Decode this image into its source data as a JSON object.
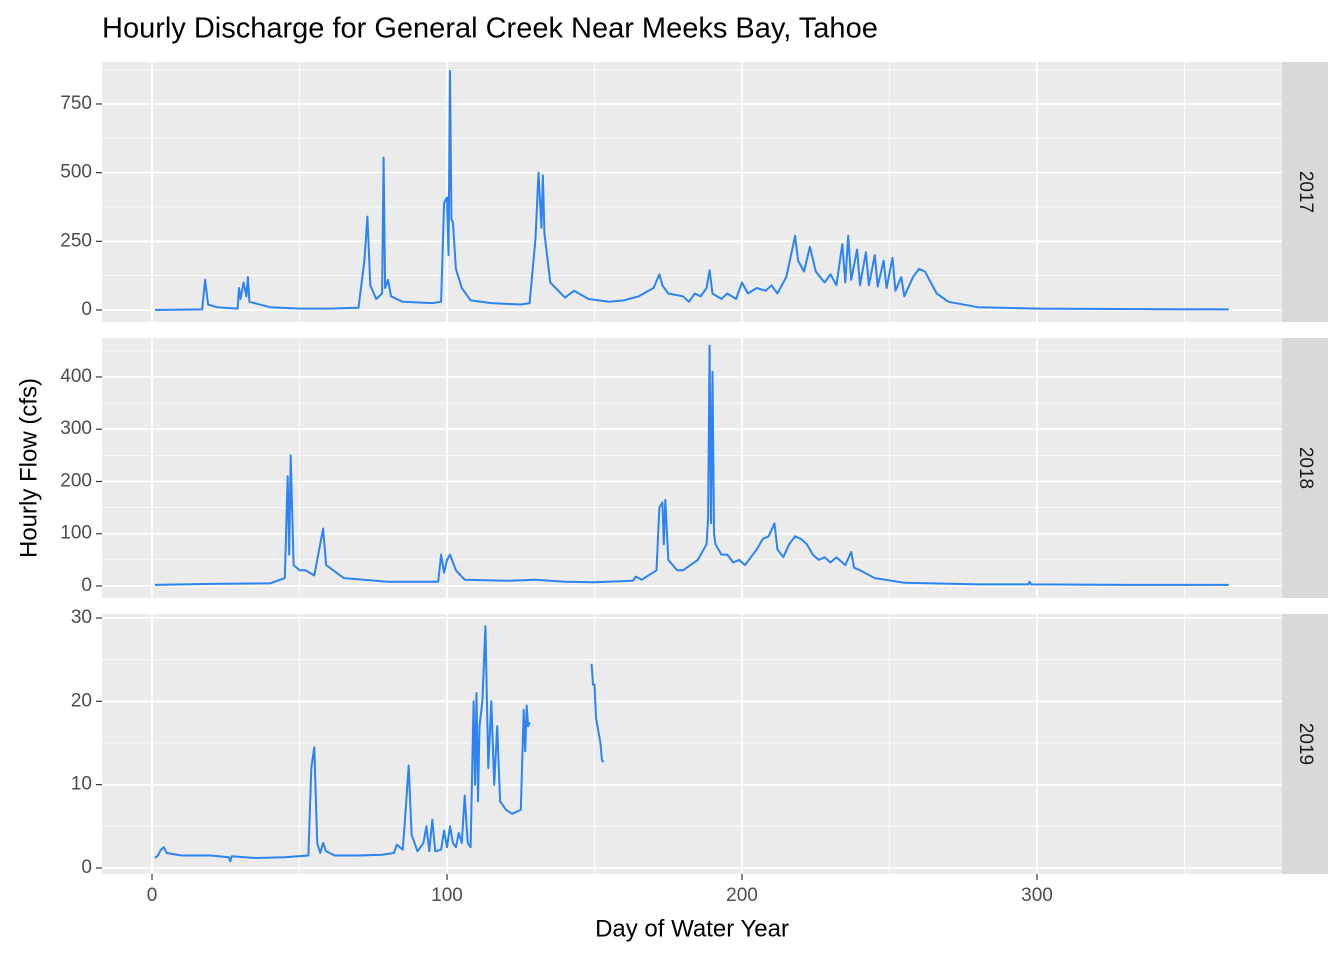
{
  "title": "Hourly Discharge for General Creek Near Meeks Bay, Tahoe",
  "x_label": "Day of Water Year",
  "y_label": "Hourly Flow (cfs)",
  "chart_data": [
    {
      "type": "line",
      "facet": "2017",
      "color": "#2b83f6",
      "grid": true,
      "xlim": [
        -16.95,
        383.05
      ],
      "xticks": [
        0,
        100,
        200,
        300
      ],
      "ylim": [
        -43.7,
        902.8
      ],
      "yticks": [
        0,
        250,
        500,
        750
      ],
      "x": [
        1,
        17,
        18,
        19,
        22,
        29,
        29.5,
        30,
        31,
        32,
        32.5,
        33,
        40,
        50,
        60,
        70,
        72,
        73,
        74,
        76,
        78,
        78.5,
        79,
        80,
        81,
        85,
        95,
        98,
        99,
        100,
        100.5,
        101,
        101.5,
        102,
        103,
        105,
        108,
        115,
        125,
        128,
        130,
        131,
        132,
        132.5,
        133,
        135,
        140,
        143,
        148,
        155,
        160,
        165,
        170,
        172,
        173,
        175,
        180,
        182,
        184,
        186,
        188,
        189,
        190,
        193,
        195,
        198,
        200,
        202,
        205,
        208,
        210,
        212,
        215,
        217,
        218,
        219,
        221,
        223,
        225,
        228,
        230,
        232,
        234,
        235,
        236,
        237,
        239,
        240,
        242,
        243,
        245,
        246,
        248,
        249,
        251,
        252,
        254,
        255,
        258,
        260,
        262,
        264,
        266,
        270,
        280,
        300,
        340,
        365
      ],
      "values": [
        0,
        2,
        110,
        20,
        10,
        5,
        80,
        40,
        100,
        50,
        120,
        30,
        10,
        5,
        5,
        8,
        180,
        340,
        90,
        40,
        60,
        555,
        80,
        110,
        50,
        30,
        25,
        30,
        390,
        410,
        200,
        870,
        330,
        320,
        150,
        80,
        35,
        25,
        20,
        25,
        260,
        500,
        300,
        490,
        280,
        100,
        45,
        70,
        40,
        30,
        35,
        50,
        80,
        130,
        90,
        60,
        50,
        30,
        60,
        50,
        80,
        145,
        60,
        40,
        60,
        40,
        100,
        60,
        80,
        70,
        90,
        60,
        120,
        220,
        270,
        180,
        140,
        230,
        140,
        100,
        130,
        90,
        240,
        100,
        270,
        110,
        220,
        90,
        210,
        90,
        200,
        85,
        180,
        80,
        190,
        70,
        120,
        50,
        120,
        150,
        140,
        100,
        60,
        30,
        10,
        5,
        3,
        2
      ]
    },
    {
      "type": "line",
      "facet": "2018",
      "color": "#2b83f6",
      "grid": true,
      "xlim": [
        -16.95,
        383.05
      ],
      "xticks": [
        0,
        100,
        200,
        300
      ],
      "ylim": [
        -23,
        474.6
      ],
      "yticks": [
        0,
        100,
        200,
        300,
        400
      ],
      "x": [
        1,
        20,
        40,
        45,
        46,
        46.5,
        47,
        48,
        50,
        52,
        55,
        58,
        59,
        65,
        80,
        97,
        98,
        99,
        100,
        101,
        103,
        106,
        120,
        130,
        140,
        150,
        163,
        164,
        166,
        171,
        172,
        173,
        173.5,
        174,
        175,
        178,
        180,
        185,
        188,
        188.5,
        189,
        189.5,
        190,
        190.5,
        191,
        193,
        195,
        197,
        199,
        201,
        203,
        205,
        207,
        209,
        211,
        212,
        214,
        216,
        218,
        220,
        222,
        224,
        226,
        228,
        230,
        232,
        235,
        237,
        238,
        240,
        245,
        255,
        280,
        297,
        297.5,
        298,
        330,
        365
      ],
      "values": [
        2,
        4,
        5,
        15,
        210,
        60,
        250,
        40,
        30,
        30,
        20,
        110,
        40,
        15,
        8,
        8,
        60,
        25,
        50,
        60,
        30,
        12,
        10,
        12,
        8,
        7,
        10,
        18,
        12,
        30,
        150,
        160,
        80,
        165,
        50,
        30,
        30,
        50,
        80,
        130,
        460,
        120,
        410,
        100,
        80,
        60,
        60,
        45,
        50,
        40,
        55,
        70,
        90,
        95,
        120,
        70,
        55,
        80,
        95,
        90,
        80,
        60,
        50,
        55,
        45,
        55,
        40,
        65,
        35,
        30,
        15,
        6,
        3,
        3,
        8,
        3,
        2,
        2
      ]
    },
    {
      "type": "line",
      "facet": "2019",
      "color": "#2b83f6",
      "grid": true,
      "xlim": [
        -16.95,
        383.05
      ],
      "xticks": [
        0,
        100,
        200,
        300
      ],
      "ylim": [
        -0.72,
        30.48
      ],
      "yticks": [
        0,
        10,
        20,
        30
      ],
      "x": [
        1,
        2,
        3,
        4,
        5,
        10,
        20,
        26,
        26.5,
        27,
        35,
        45,
        53,
        54,
        55,
        56,
        57,
        58,
        59,
        62,
        70,
        78,
        82,
        83,
        85,
        86,
        87,
        88,
        90,
        92,
        93,
        94,
        95,
        96,
        98,
        99,
        100,
        101,
        102,
        103,
        104,
        105,
        106,
        107,
        108,
        109,
        109.5,
        110,
        110.5,
        111,
        112,
        113,
        114,
        115,
        116,
        117,
        118,
        120,
        122,
        124,
        125,
        126,
        126.5,
        127,
        127.5,
        128,
        138,
        149,
        149.5,
        150,
        150.5,
        151,
        152,
        152.5,
        153
      ],
      "values": [
        1.2,
        1.5,
        2.2,
        2.5,
        1.8,
        1.5,
        1.5,
        1.3,
        0.8,
        1.4,
        1.2,
        1.3,
        1.5,
        12,
        14.5,
        3,
        1.8,
        3,
        2,
        1.5,
        1.5,
        1.6,
        1.8,
        2.8,
        2.2,
        7,
        12.3,
        4,
        2,
        3,
        5,
        2,
        5.8,
        2,
        2.2,
        4.5,
        2.5,
        5,
        3,
        2.5,
        4.2,
        3,
        8.7,
        3,
        2.5,
        20,
        10,
        21,
        8,
        17,
        20,
        29,
        12,
        20,
        10,
        17,
        8,
        7,
        6.5,
        6.8,
        7,
        19,
        14,
        19.5,
        17,
        17.5,
        null,
        24.5,
        22,
        22,
        18,
        17,
        15,
        13,
        12.7
      ]
    }
  ]
}
